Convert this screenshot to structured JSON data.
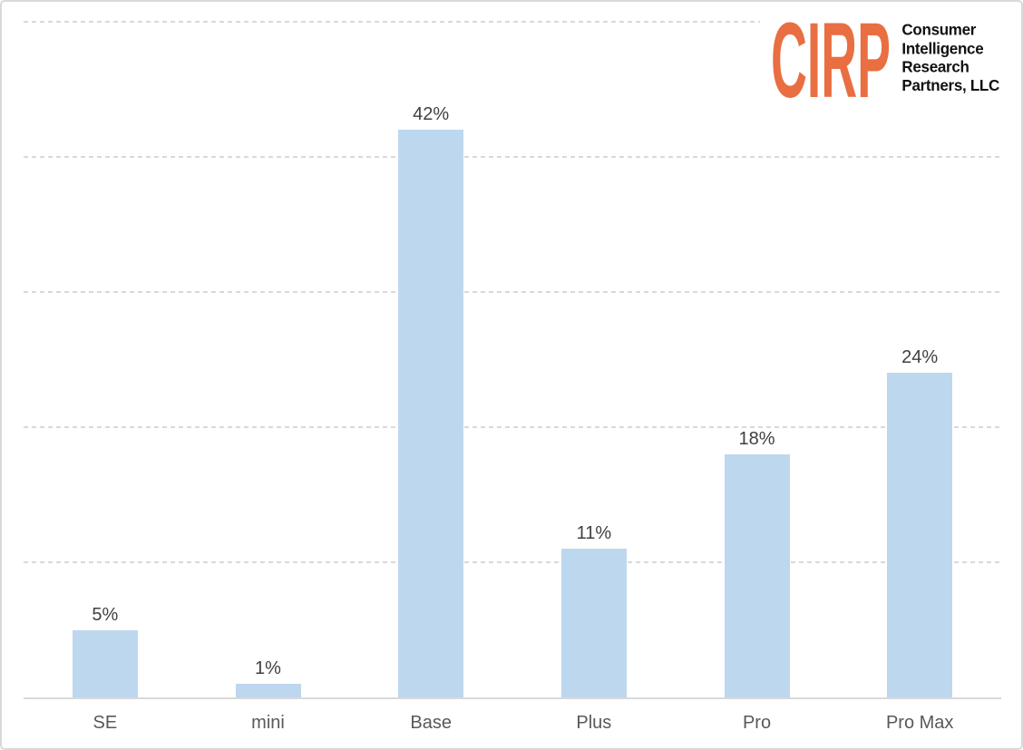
{
  "logo": {
    "acronym": "CIRP",
    "org_lines": [
      "Consumer",
      "Intelligence",
      "Research",
      "Partners, LLC"
    ],
    "accent_color": "#E96E41",
    "text_color": "#111111"
  },
  "chart_data": {
    "type": "bar",
    "categories": [
      "SE",
      "mini",
      "Base",
      "Plus",
      "Pro",
      "Pro Max"
    ],
    "values": [
      5,
      1,
      42,
      11,
      18,
      24
    ],
    "data_labels": [
      "5%",
      "1%",
      "42%",
      "11%",
      "18%",
      "24%"
    ],
    "title": "",
    "xlabel": "",
    "ylabel": "",
    "ylim": [
      0,
      50
    ],
    "gridline_step": 10,
    "grid": true,
    "gridline_style": "dashed",
    "legend": false,
    "bar_color": "#BDD7EE",
    "label_color": "#404040",
    "category_color": "#595959",
    "axis_color": "#D9D9D9"
  }
}
